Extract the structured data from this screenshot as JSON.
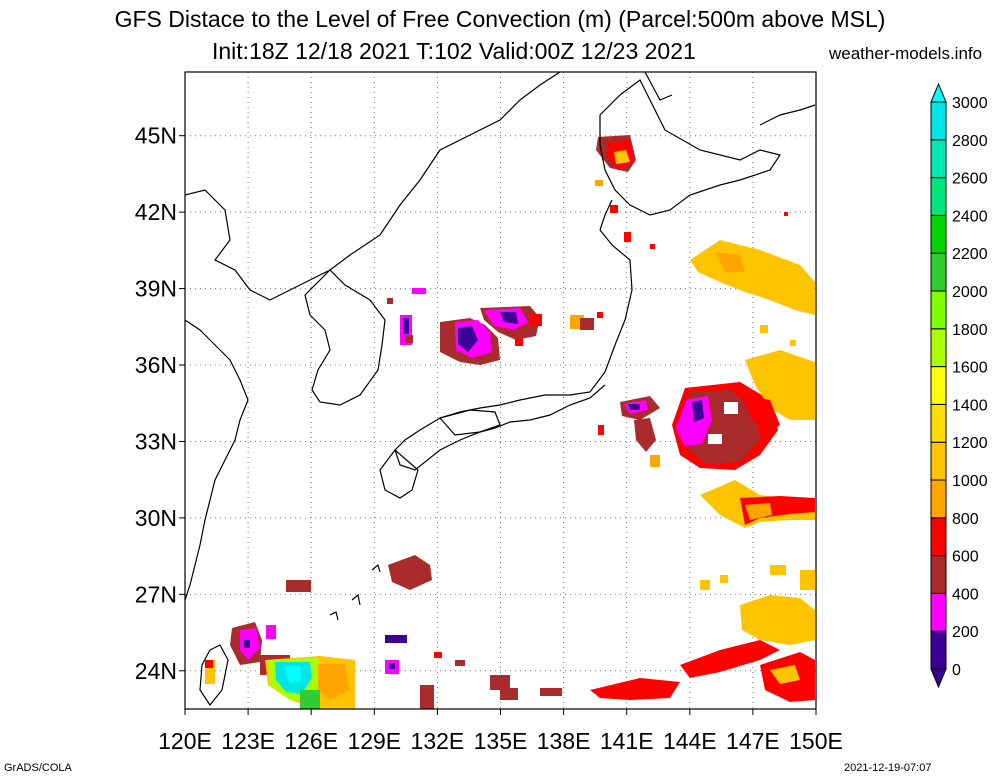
{
  "title": "GFS Distace to the Level of Free Convection (m) (Parcel:500m above MSL)",
  "subtitle": "Init:18Z 12/18 2021 T:102 Valid:00Z 12/23 2021",
  "site": "weather-models.info",
  "footer_left": "GrADS/COLA",
  "footer_right": "2021-12-19-07:07",
  "map": {
    "lon_range": [
      120,
      150
    ],
    "lat_range": [
      22.5,
      47.5
    ],
    "lon_ticks": [
      "120E",
      "123E",
      "126E",
      "129E",
      "132E",
      "135E",
      "138E",
      "141E",
      "144E",
      "147E",
      "150E"
    ],
    "lat_ticks": [
      "24N",
      "27N",
      "30N",
      "33N",
      "36N",
      "39N",
      "42N",
      "45N"
    ],
    "gridlines": true
  },
  "colorbar": {
    "levels": [
      "0",
      "200",
      "400",
      "600",
      "800",
      "1000",
      "1200",
      "1400",
      "1600",
      "1800",
      "2000",
      "2200",
      "2400",
      "2600",
      "2800",
      "3000"
    ],
    "colors": [
      "#3c0096",
      "#ff00ff",
      "#aa2b2b",
      "#ff0000",
      "#ffa500",
      "#ffc400",
      "#ffdd00",
      "#ffff00",
      "#aaff00",
      "#7fff00",
      "#32cd32",
      "#00d700",
      "#00e57f",
      "#00e8b4",
      "#00e6e6",
      "#00ffff"
    ]
  }
}
